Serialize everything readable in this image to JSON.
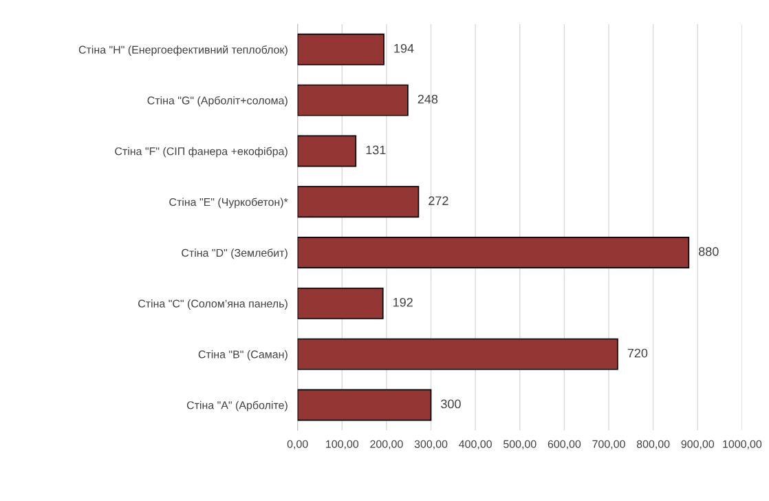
{
  "chart_data": {
    "type": "bar",
    "orientation": "horizontal",
    "categories": [
      "Стіна \"H\" (Енергоефективний теплоблок)",
      "Стіна \"G\" (Арболіт+солома)",
      "Стіна \"F\" (СІП фанера +екофібра)",
      "Стіна \"E\" (Чуркобетон)*",
      "Стіна \"D\" (Землебит)",
      "Стіна \"C\" (Солом’яна панель)",
      "Стіна \"B\" (Саман)",
      "Стіна \"A\" (Арболіте)"
    ],
    "values": [
      194,
      248,
      131,
      272,
      880,
      192,
      720,
      300
    ],
    "color": "#943634",
    "data_labels": true,
    "xlim": [
      0,
      1000
    ],
    "xticks": [
      {
        "value": 0,
        "label": "0,00"
      },
      {
        "value": 100,
        "label": "100,00"
      },
      {
        "value": 200,
        "label": "200,00"
      },
      {
        "value": 300,
        "label": "300,00"
      },
      {
        "value": 400,
        "label": "400,00"
      },
      {
        "value": 500,
        "label": "500,00"
      },
      {
        "value": 600,
        "label": "600,00"
      },
      {
        "value": 700,
        "label": "700,00"
      },
      {
        "value": 800,
        "label": "800,00"
      },
      {
        "value": 900,
        "label": "900,00"
      },
      {
        "value": 1000,
        "label": "1000,00"
      }
    ],
    "grid": "x"
  }
}
